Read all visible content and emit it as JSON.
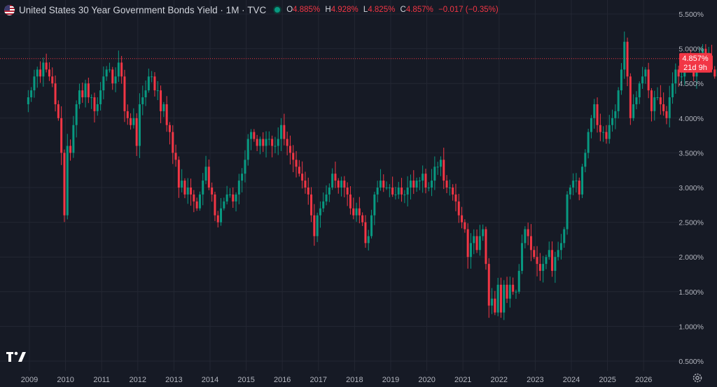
{
  "header": {
    "symbol_title": "United States 30 Year Government Bonds Yield · 1M · TVC",
    "open_key": "O",
    "open_value": "4.885%",
    "high_key": "H",
    "high_value": "4.928%",
    "low_key": "L",
    "low_value": "4.825%",
    "close_key": "C",
    "close_value": "4.857%",
    "change": "−0.017 (−0.35%)"
  },
  "price_label": {
    "value": "4.857%",
    "countdown": "21d 9h"
  },
  "colors": {
    "background": "#161a25",
    "up": "#089981",
    "down": "#f23645",
    "grid": "#232733",
    "axis_text": "#b2b5be"
  },
  "icons": {
    "flag": "us-flag-icon",
    "logo": "tradingview-logo-icon",
    "settings": "gear-icon"
  },
  "chart_data": {
    "type": "candlestick",
    "series": "United States 30 Year Government Bonds Yield",
    "interval": "1M",
    "y_unit": "%",
    "y_ticks": [
      "5.500%",
      "5.000%",
      "4.500%",
      "4.000%",
      "3.500%",
      "3.000%",
      "2.500%",
      "2.000%",
      "1.500%",
      "1.000%",
      "0.500%"
    ],
    "y_tick_values": [
      5.5,
      5.0,
      4.5,
      4.0,
      3.5,
      3.0,
      2.5,
      2.0,
      1.5,
      1.0,
      0.5
    ],
    "ylim": [
      0.3,
      5.75
    ],
    "x_ticks": [
      "2009",
      "2010",
      "2011",
      "2012",
      "2013",
      "2014",
      "2015",
      "2016",
      "2017",
      "2018",
      "2019",
      "2020",
      "2021",
      "2022",
      "2023",
      "2024",
      "2025",
      "2026"
    ],
    "current_value": 4.857,
    "closes": [
      4.3,
      4.4,
      4.6,
      4.7,
      4.6,
      4.8,
      4.7,
      4.6,
      4.5,
      4.2,
      4.0,
      3.5,
      2.6,
      3.6,
      3.5,
      3.9,
      4.2,
      4.4,
      4.3,
      4.5,
      4.3,
      4.3,
      4.1,
      4.2,
      4.4,
      4.6,
      4.7,
      4.7,
      4.5,
      4.6,
      4.8,
      4.6,
      4.1,
      4.0,
      3.9,
      4.0,
      3.6,
      4.2,
      4.3,
      4.4,
      4.6,
      4.6,
      4.4,
      4.4,
      4.1,
      4.2,
      3.9,
      3.8,
      3.5,
      3.4,
      3.0,
      3.1,
      2.9,
      3.0,
      2.9,
      2.8,
      2.7,
      2.9,
      3.1,
      3.3,
      3.0,
      2.9,
      2.6,
      2.5,
      2.7,
      2.8,
      2.9,
      2.9,
      2.8,
      2.9,
      3.1,
      3.2,
      3.4,
      3.7,
      3.8,
      3.7,
      3.6,
      3.7,
      3.6,
      3.7,
      3.7,
      3.6,
      3.6,
      3.7,
      3.9,
      3.7,
      3.6,
      3.5,
      3.4,
      3.3,
      3.2,
      3.1,
      3.0,
      2.9,
      2.6,
      2.3,
      2.6,
      2.7,
      2.8,
      2.9,
      3.0,
      3.2,
      3.1,
      3.0,
      3.1,
      3.0,
      2.9,
      2.7,
      2.6,
      2.7,
      2.6,
      2.5,
      2.2,
      2.3,
      2.6,
      2.9,
      3.0,
      3.1,
      3.0,
      3.0,
      3.0,
      2.9,
      2.9,
      3.0,
      2.9,
      2.9,
      3.0,
      3.1,
      3.0,
      3.1,
      3.1,
      3.2,
      3.0,
      3.0,
      3.1,
      3.3,
      3.3,
      3.4,
      3.1,
      3.0,
      3.0,
      2.9,
      2.8,
      2.6,
      2.5,
      2.4,
      2.0,
      2.2,
      2.3,
      2.1,
      2.3,
      2.4,
      1.9,
      1.3,
      1.4,
      1.2,
      1.6,
      1.2,
      1.6,
      1.4,
      1.6,
      1.5,
      1.5,
      1.8,
      2.2,
      2.4,
      2.3,
      2.1,
      2.0,
      1.9,
      1.8,
      1.9,
      2.0,
      2.1,
      1.8,
      2.0,
      2.1,
      2.2,
      2.4,
      2.9,
      3.0,
      3.1,
      3.1,
      2.9,
      3.3,
      3.5,
      3.8,
      4.0,
      4.2,
      3.9,
      3.8,
      3.8,
      3.7,
      3.9,
      4.0,
      4.1,
      4.4,
      4.7,
      5.1,
      4.6,
      4.0,
      4.2,
      4.3,
      4.5,
      4.6,
      4.7,
      4.4,
      4.1,
      4.3,
      4.3,
      4.2,
      4.1,
      4.0,
      4.3,
      4.5,
      4.7,
      4.6,
      4.6,
      4.8,
      4.9,
      4.7,
      4.6,
      4.8,
      4.9,
      5.0,
      4.8,
      4.9,
      4.7,
      4.6,
      4.7,
      4.8,
      4.9,
      4.88,
      4.857
    ]
  }
}
